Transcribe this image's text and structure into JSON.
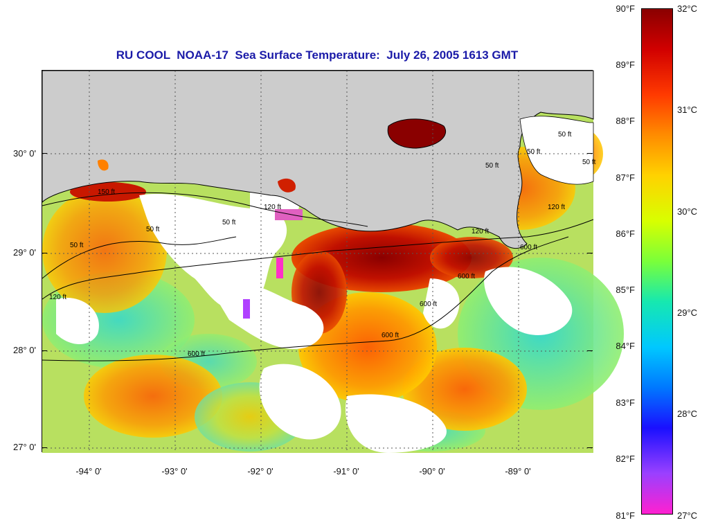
{
  "title": "RU COOL  NOAA-17  Sea Surface Temperature:  July 26, 2005 1613 GMT",
  "map": {
    "lat_labels": [
      "30° 0'",
      "29° 0'",
      "28° 0'",
      "27° 0'"
    ],
    "lon_labels": [
      "-94° 0'",
      "-93° 0'",
      "-92° 0'",
      "-91° 0'",
      "-90° 0'",
      "-89° 0'"
    ],
    "contour_labels": [
      "50 ft",
      "120 ft",
      "600 ft"
    ],
    "contour_label_texts": [
      "150 ft",
      "50 ft",
      "50 ft",
      "50 ft",
      "120 ft",
      "120 ft",
      "600 ft",
      "600 ft",
      "600 ft",
      "600 ft",
      "120 ft",
      "50 ft",
      "50 ft",
      "50 ft",
      "600 ft",
      "120 ft",
      "50 ft"
    ],
    "land_color": "#cccccc",
    "cloud_color": "#ffffff"
  },
  "colorbar": {
    "fahrenheit": [
      "90°F",
      "89°F",
      "88°F",
      "87°F",
      "86°F",
      "85°F",
      "84°F",
      "83°F",
      "82°F",
      "81°F"
    ],
    "celsius": [
      "32°C",
      "31°C",
      "30°C",
      "29°C",
      "28°C",
      "27°C"
    ],
    "colors": [
      "#8a0000",
      "#d10000",
      "#ff3a00",
      "#ff8c00",
      "#ffd200",
      "#d8ff00",
      "#7aff3a",
      "#16e8b0",
      "#00c8ff",
      "#0078ff",
      "#1a10ff",
      "#9a40ff",
      "#ff20d0"
    ]
  }
}
